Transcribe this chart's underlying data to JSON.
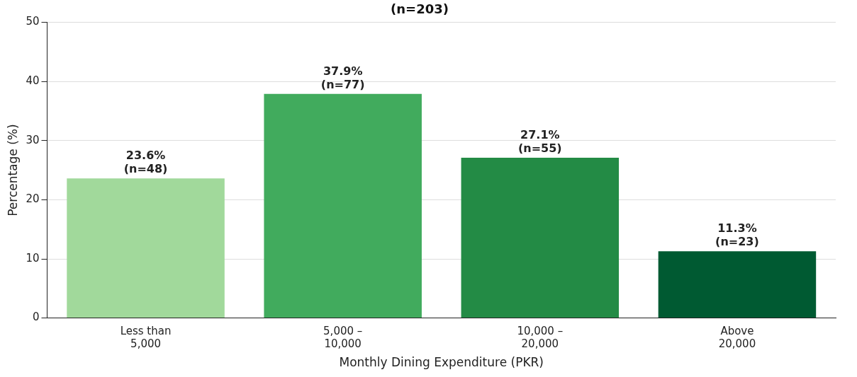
{
  "chart_data": {
    "type": "bar",
    "title": "(n=203)",
    "xlabel": "Monthly Dining Expenditure (PKR)",
    "ylabel": "Percentage (%)",
    "categories": [
      "Less than\n5,000",
      "5,000 –\n10,000",
      "10,000 –\n20,000",
      "Above\n20,000"
    ],
    "values": [
      23.6,
      37.9,
      27.1,
      11.3
    ],
    "colors": [
      "#a1d99b",
      "#41ab5d",
      "#238b45",
      "#005a32"
    ],
    "value_labels": [
      "23.6%\n(n=48)",
      "37.9%\n(n=77)",
      "27.1%\n(n=55)",
      "11.3%\n(n=23)"
    ],
    "ylim": [
      0,
      50
    ],
    "yticks": [
      0,
      10,
      20,
      30,
      40,
      50
    ],
    "grid": "y"
  }
}
